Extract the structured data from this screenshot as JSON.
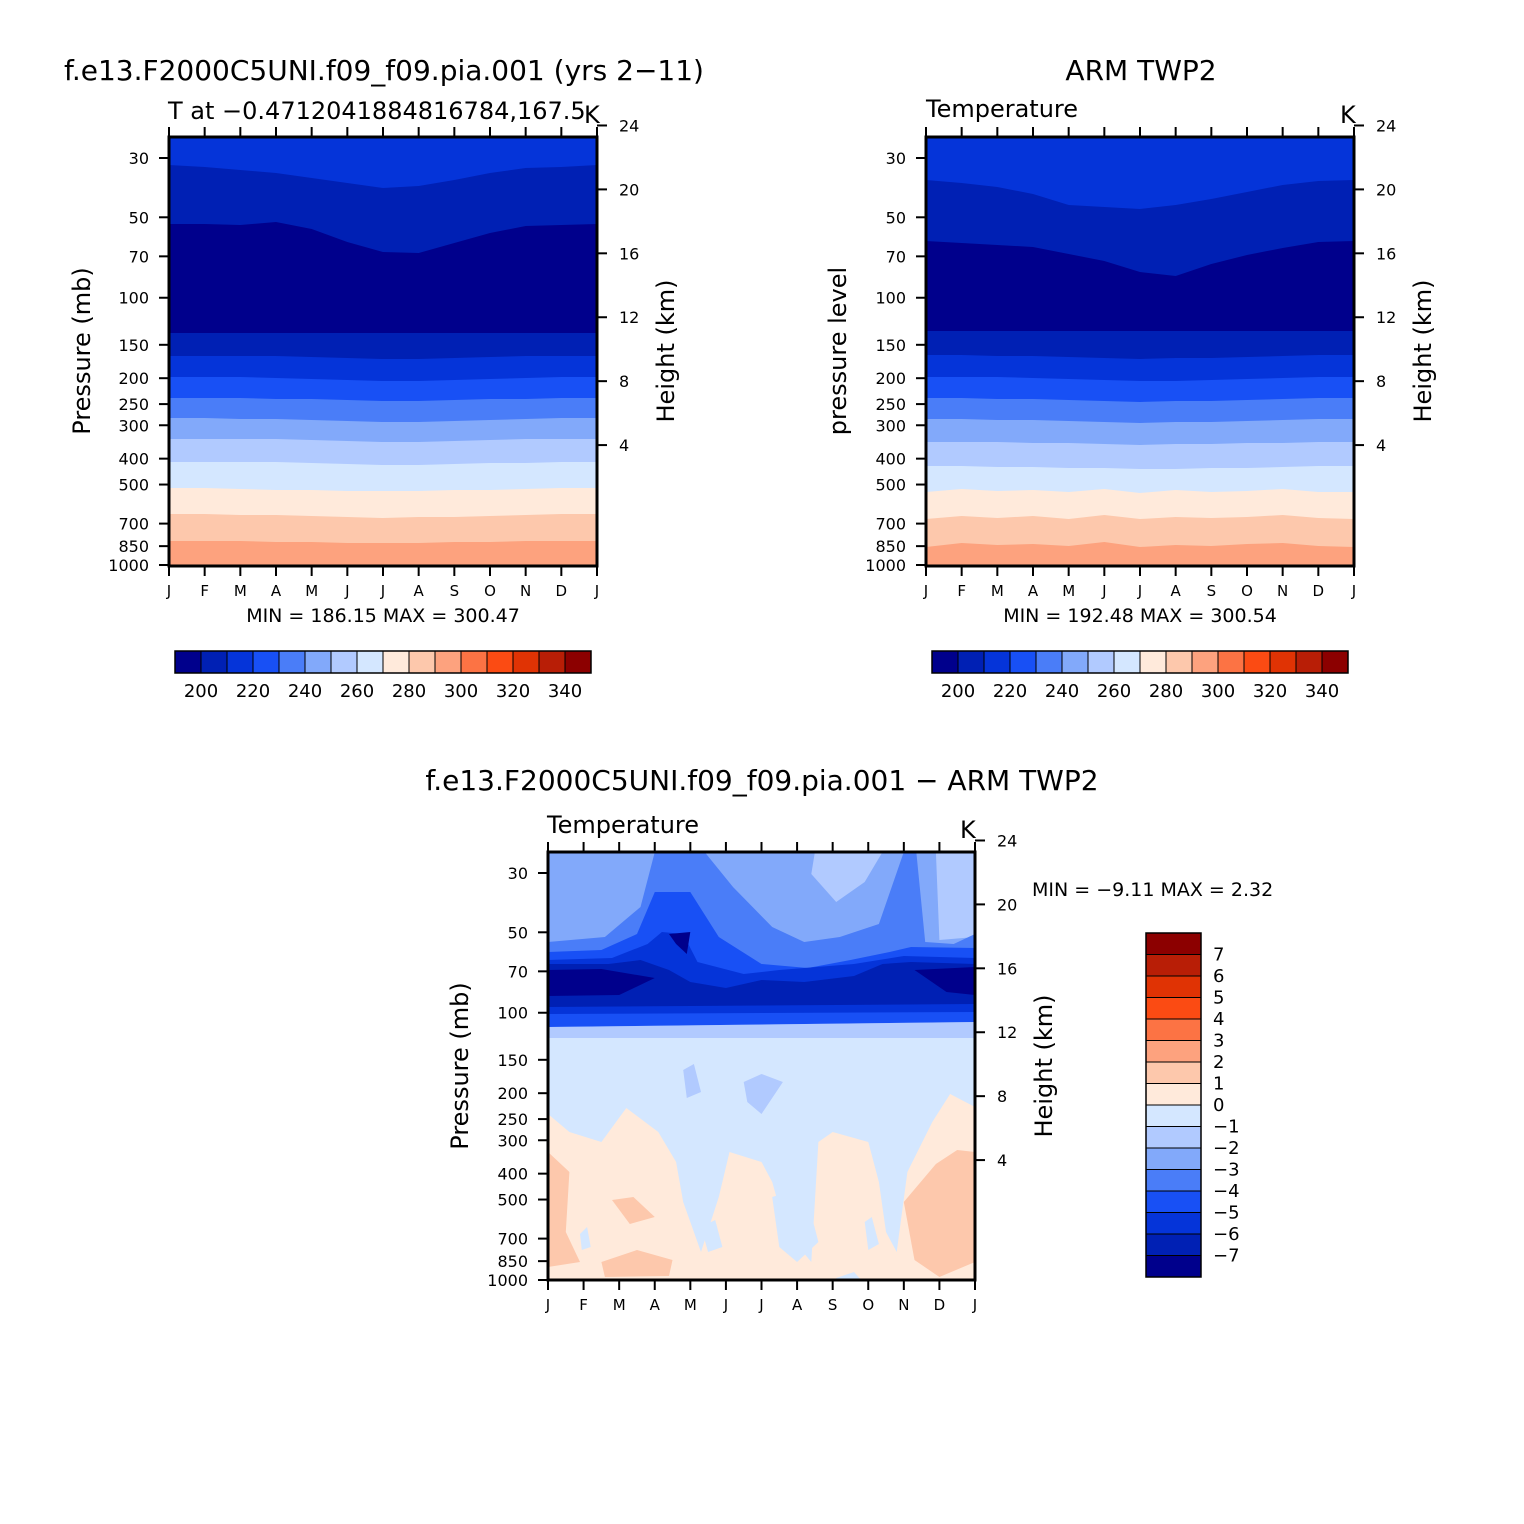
{
  "chart_data": [
    {
      "type": "heatmap",
      "title": "f.e13.F2000C5UNI.f09_f09.pia.001 (yrs 2−11)",
      "subtitle": "T at −0.4712041884816784,167.5",
      "units": "K",
      "ylabel": "Pressure (mb)",
      "ylabel_right": "Height (km)",
      "minmax": "MIN =  186.15 MAX =  300.47",
      "x_ticks": [
        "J",
        "F",
        "M",
        "A",
        "M",
        "J",
        "J",
        "A",
        "S",
        "O",
        "N",
        "D",
        "J"
      ],
      "y_ticks": [
        "30",
        "50",
        "70",
        "100",
        "150",
        "200",
        "250",
        "300",
        "400",
        "500",
        "700",
        "850",
        "1000"
      ],
      "y_ticks_right": [
        "24",
        "20",
        "16",
        "12",
        "8",
        "4"
      ],
      "levels": [
        200,
        220,
        240,
        260,
        280,
        300,
        320,
        340
      ],
      "y_scale": "log-pressure"
    },
    {
      "type": "heatmap",
      "title": "ARM TWP2",
      "subtitle": "Temperature",
      "units": "K",
      "ylabel": "pressure level",
      "ylabel_right": "Height (km)",
      "minmax": "MIN =  192.48 MAX =  300.54",
      "x_ticks": [
        "J",
        "F",
        "M",
        "A",
        "M",
        "J",
        "J",
        "A",
        "S",
        "O",
        "N",
        "D",
        "J"
      ],
      "y_ticks": [
        "30",
        "50",
        "70",
        "100",
        "150",
        "200",
        "250",
        "300",
        "400",
        "500",
        "700",
        "850",
        "1000"
      ],
      "y_ticks_right": [
        "24",
        "20",
        "16",
        "12",
        "8",
        "4"
      ],
      "levels": [
        200,
        220,
        240,
        260,
        280,
        300,
        320,
        340
      ],
      "y_scale": "log-pressure"
    },
    {
      "type": "heatmap",
      "title": "f.e13.F2000C5UNI.f09_f09.pia.001 − ARM TWP2",
      "subtitle": "Temperature",
      "units": "K",
      "ylabel": "Pressure (mb)",
      "ylabel_right": "Height (km)",
      "minmax": "MIN =   −9.11 MAX =    2.32",
      "x_ticks": [
        "J",
        "F",
        "M",
        "A",
        "M",
        "J",
        "J",
        "A",
        "S",
        "O",
        "N",
        "D",
        "J"
      ],
      "y_ticks": [
        "30",
        "50",
        "70",
        "100",
        "150",
        "200",
        "250",
        "300",
        "400",
        "500",
        "700",
        "850",
        "1000"
      ],
      "y_ticks_right": [
        "24",
        "20",
        "16",
        "12",
        "8",
        "4"
      ],
      "levels": [
        7,
        6,
        5,
        4,
        3,
        2,
        1,
        0,
        "−1",
        "−2",
        "−3",
        "−4",
        "−5",
        "−6",
        "−7"
      ],
      "y_scale": "log-pressure"
    }
  ],
  "palette": [
    "#00008c",
    "#0020b4",
    "#0534d9",
    "#1850f5",
    "#4a7df8",
    "#82a9fa",
    "#b1caff",
    "#d4e7ff",
    "#ffeadb",
    "#fdc8ac",
    "#fda27e",
    "#fc7344",
    "#fb4b13",
    "#e03304",
    "#b81e06",
    "#8c0000"
  ]
}
